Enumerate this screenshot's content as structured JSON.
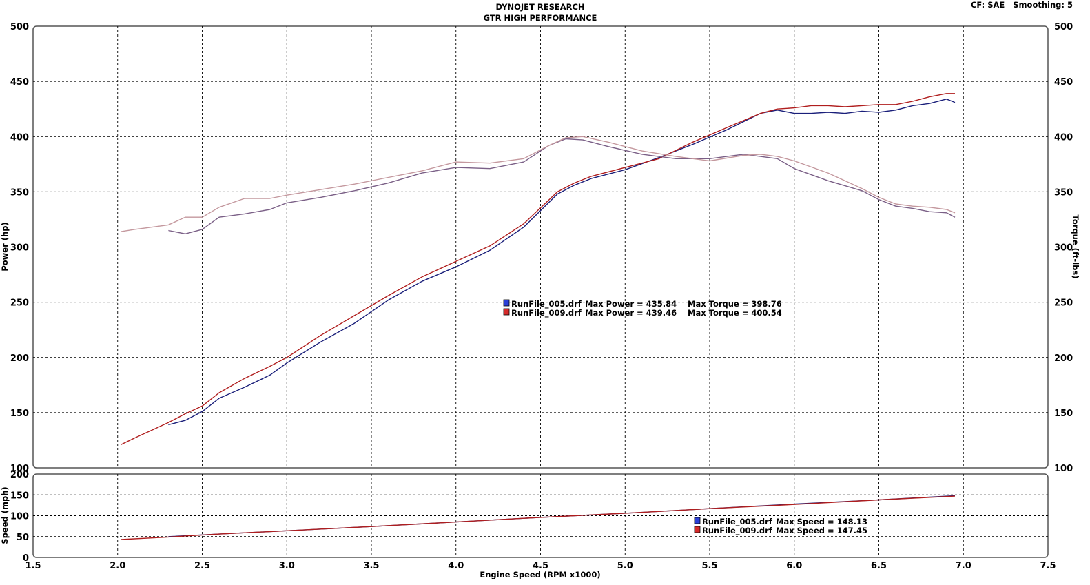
{
  "header": {
    "title_line1": "DYNOJET RESEARCH",
    "title_line2": "GTR HIGH PERFORMANCE",
    "settings": "CF: SAE   Smoothing: 5"
  },
  "chart_data": [
    {
      "type": "line",
      "panel": "main",
      "xlabel": "",
      "ylabel_left": "Power (hp)",
      "ylabel_right": "Torque (ft-lbs)",
      "xlim": [
        1.5,
        7.5
      ],
      "ylim": [
        100,
        500
      ],
      "x_ticks": [
        "1.5",
        "2.0",
        "2.5",
        "3.0",
        "3.5",
        "4.0",
        "4.5",
        "5.0",
        "5.5",
        "6.0",
        "6.5",
        "7.0",
        "7.5"
      ],
      "y_ticks": [
        "100",
        "150",
        "200",
        "250",
        "300",
        "350",
        "400",
        "450",
        "500"
      ],
      "grid": true,
      "series": [
        {
          "name": "RunFile_005.drf",
          "measure": "power",
          "color": "#1a1f7a",
          "x": [
            2.3,
            2.4,
            2.5,
            2.6,
            2.75,
            2.9,
            3.0,
            3.2,
            3.4,
            3.6,
            3.8,
            4.0,
            4.2,
            4.4,
            4.6,
            4.7,
            4.8,
            5.0,
            5.2,
            5.4,
            5.6,
            5.8,
            5.9,
            6.0,
            6.1,
            6.2,
            6.3,
            6.4,
            6.5,
            6.6,
            6.7,
            6.8,
            6.9,
            6.95
          ],
          "y": [
            139,
            143,
            151,
            163,
            173,
            184,
            195,
            214,
            231,
            252,
            269,
            282,
            297,
            318,
            348,
            356,
            362,
            370,
            381,
            393,
            406,
            421,
            424,
            421,
            421,
            422,
            421,
            423,
            422,
            424,
            428,
            430,
            434,
            431
          ]
        },
        {
          "name": "RunFile_009.drf",
          "measure": "power",
          "color": "#b01e1e",
          "x": [
            2.02,
            2.1,
            2.2,
            2.3,
            2.4,
            2.5,
            2.6,
            2.75,
            2.9,
            3.0,
            3.2,
            3.4,
            3.6,
            3.8,
            4.0,
            4.2,
            4.4,
            4.6,
            4.7,
            4.8,
            5.0,
            5.2,
            5.4,
            5.6,
            5.8,
            5.9,
            6.0,
            6.1,
            6.2,
            6.3,
            6.4,
            6.5,
            6.6,
            6.7,
            6.8,
            6.9,
            6.95
          ],
          "y": [
            121,
            127,
            134,
            141,
            149,
            156,
            168,
            181,
            192,
            200,
            220,
            238,
            256,
            273,
            287,
            301,
            321,
            350,
            358,
            364,
            372,
            380,
            395,
            408,
            421,
            425,
            426,
            428,
            428,
            427,
            428,
            429,
            429,
            432,
            436,
            439,
            439
          ]
        },
        {
          "name": "RunFile_005.drf",
          "measure": "torque",
          "color": "#7a5f86",
          "x": [
            2.3,
            2.4,
            2.5,
            2.6,
            2.75,
            2.9,
            3.0,
            3.2,
            3.4,
            3.6,
            3.8,
            4.0,
            4.2,
            4.4,
            4.55,
            4.65,
            4.75,
            4.9,
            5.1,
            5.3,
            5.5,
            5.7,
            5.8,
            5.9,
            6.0,
            6.2,
            6.4,
            6.5,
            6.6,
            6.7,
            6.8,
            6.9,
            6.95
          ],
          "y": [
            315,
            312,
            316,
            327,
            330,
            334,
            340,
            345,
            351,
            358,
            367,
            372,
            371,
            377,
            392,
            398,
            397,
            391,
            384,
            380,
            380,
            384,
            382,
            380,
            371,
            360,
            351,
            343,
            337,
            335,
            332,
            331,
            327
          ]
        },
        {
          "name": "RunFile_009.drf",
          "measure": "torque",
          "color": "#c4989e",
          "x": [
            2.02,
            2.1,
            2.2,
            2.3,
            2.4,
            2.5,
            2.6,
            2.75,
            2.9,
            3.0,
            3.2,
            3.4,
            3.6,
            3.8,
            4.0,
            4.2,
            4.4,
            4.55,
            4.65,
            4.75,
            4.9,
            5.1,
            5.3,
            5.5,
            5.7,
            5.8,
            5.9,
            6.0,
            6.2,
            6.4,
            6.5,
            6.6,
            6.7,
            6.8,
            6.9,
            6.95
          ],
          "y": [
            314,
            316,
            318,
            320,
            327,
            327,
            336,
            344,
            344,
            347,
            352,
            357,
            363,
            369,
            377,
            376,
            380,
            392,
            399,
            400,
            395,
            387,
            382,
            378,
            383,
            384,
            382,
            378,
            367,
            353,
            345,
            339,
            337,
            336,
            334,
            331
          ]
        }
      ],
      "legend": [
        {
          "swatch_color": "#2b3fd6",
          "name": "RunFile_005.drf",
          "power_text": "Max Power = 435.84",
          "torque_text": "Max Torque = 398.76"
        },
        {
          "swatch_color": "#d62b2b",
          "name": "RunFile_009.drf",
          "power_text": "Max Power = 439.46",
          "torque_text": "Max Torque = 400.54"
        }
      ]
    },
    {
      "type": "line",
      "panel": "speed",
      "xlabel": "Engine Speed (RPM x1000)",
      "ylabel": "Speed (mph)",
      "xlim": [
        1.5,
        7.5
      ],
      "ylim": [
        0,
        200
      ],
      "x_ticks": [
        "1.5",
        "2.0",
        "2.5",
        "3.0",
        "3.5",
        "4.0",
        "4.5",
        "5.0",
        "5.5",
        "6.0",
        "6.5",
        "7.0",
        "7.5"
      ],
      "y_ticks": [
        "0",
        "50",
        "100",
        "150",
        "200"
      ],
      "grid": true,
      "series": [
        {
          "name": "RunFile_005.drf",
          "color": "#1a1f7a",
          "x": [
            2.3,
            2.6,
            3.0,
            3.5,
            4.0,
            4.5,
            5.0,
            5.5,
            6.0,
            6.5,
            6.95
          ],
          "y": [
            50,
            56,
            64,
            74,
            85,
            96,
            106,
            117,
            128,
            138,
            148
          ]
        },
        {
          "name": "RunFile_009.drf",
          "color": "#b01e1e",
          "x": [
            2.02,
            2.3,
            2.6,
            3.0,
            3.5,
            4.0,
            4.5,
            5.0,
            5.5,
            6.0,
            6.5,
            6.95
          ],
          "y": [
            43,
            49,
            56,
            64,
            74,
            85,
            96,
            106,
            117,
            127,
            138,
            147
          ]
        }
      ],
      "legend": [
        {
          "swatch_color": "#2b3fd6",
          "name": "RunFile_005.drf",
          "text": "Max Speed = 148.13"
        },
        {
          "swatch_color": "#d62b2b",
          "name": "RunFile_009.drf",
          "text": "Max Speed = 147.45"
        }
      ]
    }
  ]
}
